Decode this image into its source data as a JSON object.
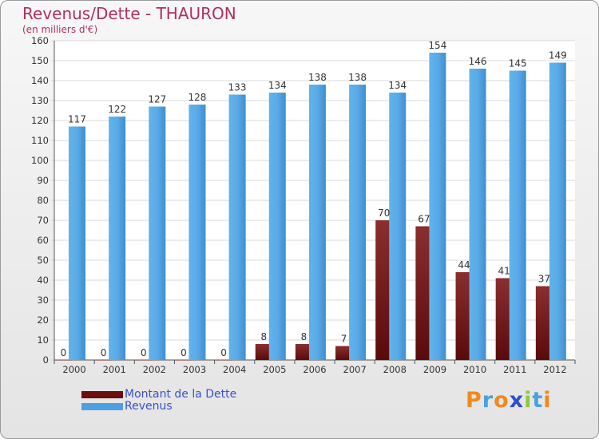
{
  "title": "Revenus/Dette - THAURON",
  "subtitle": "(en milliers d'€)",
  "chart_data": {
    "type": "bar",
    "title": "Revenus/Dette - THAURON",
    "ylabel": "(en milliers d'€)",
    "xlabel": "",
    "ylim": [
      0,
      160
    ],
    "yticks": [
      0,
      10,
      20,
      30,
      40,
      50,
      60,
      70,
      80,
      90,
      100,
      110,
      120,
      130,
      140,
      150,
      160
    ],
    "grid": true,
    "legend_position": "bottom-left",
    "categories": [
      "2000",
      "2001",
      "2002",
      "2003",
      "2004",
      "2005",
      "2006",
      "2007",
      "2008",
      "2009",
      "2010",
      "2011",
      "2012"
    ],
    "series": [
      {
        "name": "Montant de la Dette",
        "color": "#7a1a1a",
        "values": [
          0,
          0,
          0,
          0,
          0,
          8,
          8,
          7,
          70,
          67,
          44,
          41,
          37
        ]
      },
      {
        "name": "Revenus",
        "color": "#4aa0e0",
        "values": [
          117,
          122,
          127,
          128,
          133,
          134,
          138,
          138,
          134,
          154,
          146,
          145,
          149
        ]
      }
    ]
  },
  "legend": {
    "debt_label": "Montant de la Dette",
    "revenue_label": "Revenus",
    "debt_color": "#6b0f0f",
    "revenue_color": "#4aa0e0"
  },
  "logo": {
    "text": "Proxiti"
  }
}
